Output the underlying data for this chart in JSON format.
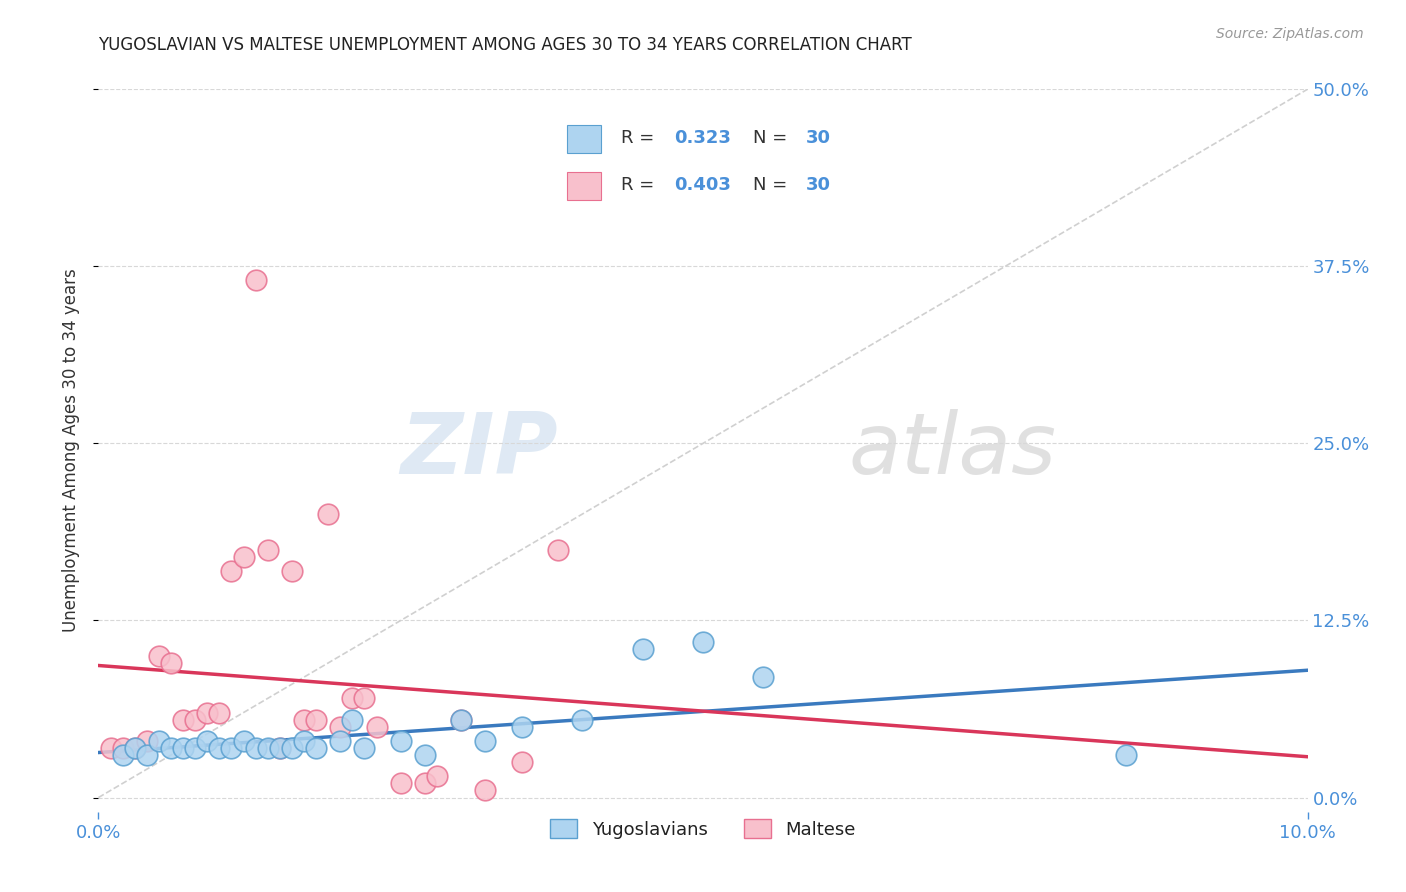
{
  "title": "YUGOSLAVIAN VS MALTESE UNEMPLOYMENT AMONG AGES 30 TO 34 YEARS CORRELATION CHART",
  "source": "Source: ZipAtlas.com",
  "ylabel_label": "Unemployment Among Ages 30 to 34 years",
  "xlim": [
    0.0,
    0.1
  ],
  "ylim": [
    -0.01,
    0.5
  ],
  "legend_labels": [
    "Yugoslavians",
    "Maltese"
  ],
  "blue_scatter_face": "#aed4f0",
  "blue_scatter_edge": "#5aa0d0",
  "pink_scatter_face": "#f8c0cc",
  "pink_scatter_edge": "#e87090",
  "blue_line_color": "#3a7abf",
  "pink_line_color": "#d9365a",
  "diagonal_color": "#d0d0d0",
  "background_color": "#ffffff",
  "grid_color": "#d8d8d8",
  "title_color": "#222222",
  "axis_tick_color": "#4a90d9",
  "ylabel_color": "#333333",
  "source_color": "#999999",
  "watermark_color": "#c8dff0",
  "yug_x": [
    0.002,
    0.003,
    0.004,
    0.005,
    0.006,
    0.007,
    0.008,
    0.009,
    0.01,
    0.011,
    0.012,
    0.013,
    0.014,
    0.015,
    0.016,
    0.017,
    0.018,
    0.02,
    0.021,
    0.022,
    0.025,
    0.027,
    0.03,
    0.032,
    0.035,
    0.04,
    0.045,
    0.05,
    0.055,
    0.085
  ],
  "yug_y": [
    0.03,
    0.035,
    0.03,
    0.04,
    0.035,
    0.035,
    0.035,
    0.04,
    0.035,
    0.035,
    0.04,
    0.035,
    0.035,
    0.035,
    0.035,
    0.04,
    0.035,
    0.04,
    0.055,
    0.035,
    0.04,
    0.03,
    0.055,
    0.04,
    0.05,
    0.055,
    0.105,
    0.11,
    0.085,
    0.03
  ],
  "malt_x": [
    0.001,
    0.002,
    0.003,
    0.004,
    0.005,
    0.006,
    0.007,
    0.008,
    0.009,
    0.01,
    0.011,
    0.012,
    0.013,
    0.014,
    0.015,
    0.016,
    0.017,
    0.018,
    0.019,
    0.02,
    0.021,
    0.022,
    0.023,
    0.025,
    0.027,
    0.028,
    0.03,
    0.032,
    0.035,
    0.038
  ],
  "malt_y": [
    0.035,
    0.035,
    0.035,
    0.04,
    0.1,
    0.095,
    0.055,
    0.055,
    0.06,
    0.06,
    0.16,
    0.17,
    0.365,
    0.175,
    0.035,
    0.16,
    0.055,
    0.055,
    0.2,
    0.05,
    0.07,
    0.07,
    0.05,
    0.01,
    0.01,
    0.015,
    0.055,
    0.005,
    0.025,
    0.175
  ]
}
